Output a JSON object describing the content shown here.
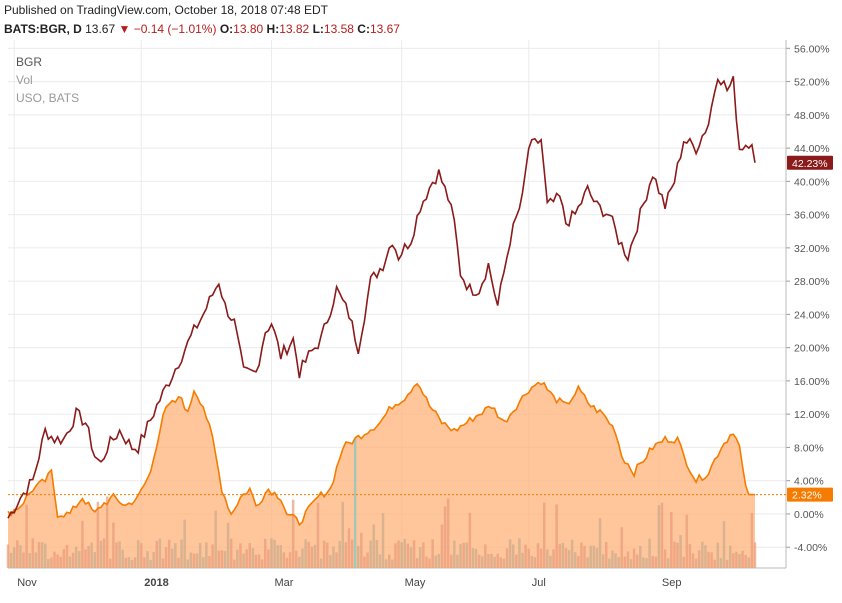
{
  "header": {
    "published": "Published on TradingView.com, October 18, 2018 07:48 EDT",
    "symbol": "BATS:BGR, D",
    "last": "13.67",
    "arrow": "▼",
    "change": "−0.14 (−1.01%)",
    "o_label": "O:",
    "o_val": "13.80",
    "h_label": "H:",
    "h_val": "13.82",
    "l_label": "L:",
    "l_val": "13.58",
    "c_label": "C:",
    "c_val": "13.67"
  },
  "legend": {
    "main": "BGR",
    "vol": "Vol",
    "compare": "USO, BATS"
  },
  "colors": {
    "bgr_line": "#8b1a1a",
    "uso_line": "#f57c00",
    "uso_fill": "#ffb27a",
    "bgr_badge": "#8b1a1a",
    "uso_badge": "#f57c00",
    "volume_teal": "#7ec8c8"
  },
  "chart_data": {
    "type": "line",
    "ylabel_unit": "%",
    "y_ticks": [
      "56.00%",
      "52.00%",
      "48.00%",
      "44.00%",
      "40.00%",
      "36.00%",
      "32.00%",
      "28.00%",
      "24.00%",
      "20.00%",
      "16.00%",
      "12.00%",
      "8.00%",
      "4.00%",
      "0.00%",
      "-4.00%"
    ],
    "ylim": [
      -6.5,
      57
    ],
    "x_ticks": [
      "Nov",
      "2018",
      "Mar",
      "May",
      "Jul",
      "Sep"
    ],
    "x_tick_index": [
      2,
      43,
      85,
      127,
      168,
      210
    ],
    "n_days": 242,
    "last_values": {
      "BGR": "42.23%",
      "USO": "2.32%"
    },
    "series": [
      {
        "name": "BGR",
        "keypoints": [
          [
            0,
            -0.5
          ],
          [
            4,
            2
          ],
          [
            8,
            4
          ],
          [
            12,
            10
          ],
          [
            15,
            9
          ],
          [
            18,
            9
          ],
          [
            22,
            12
          ],
          [
            25,
            11
          ],
          [
            28,
            7
          ],
          [
            30,
            6
          ],
          [
            32,
            8
          ],
          [
            36,
            10
          ],
          [
            40,
            8
          ],
          [
            42,
            8
          ],
          [
            48,
            13
          ],
          [
            52,
            16
          ],
          [
            56,
            19
          ],
          [
            60,
            22
          ],
          [
            63,
            24
          ],
          [
            68,
            28
          ],
          [
            70,
            25
          ],
          [
            73,
            23
          ],
          [
            76,
            17
          ],
          [
            80,
            17
          ],
          [
            83,
            22
          ],
          [
            85,
            23
          ],
          [
            88,
            19
          ],
          [
            92,
            21
          ],
          [
            94,
            17
          ],
          [
            97,
            19
          ],
          [
            101,
            21
          ],
          [
            106,
            27
          ],
          [
            110,
            24
          ],
          [
            113,
            20
          ],
          [
            117,
            28
          ],
          [
            121,
            30
          ],
          [
            124,
            33
          ],
          [
            126,
            31
          ],
          [
            130,
            33
          ],
          [
            133,
            37
          ],
          [
            137,
            40
          ],
          [
            139,
            41
          ],
          [
            142,
            38
          ],
          [
            144,
            35
          ],
          [
            146,
            29
          ],
          [
            149,
            27
          ],
          [
            152,
            27
          ],
          [
            155,
            30
          ],
          [
            158,
            25
          ],
          [
            162,
            33
          ],
          [
            166,
            38
          ],
          [
            168,
            44
          ],
          [
            172,
            45
          ],
          [
            174,
            37
          ],
          [
            178,
            38
          ],
          [
            180,
            35
          ],
          [
            183,
            36
          ],
          [
            187,
            39
          ],
          [
            190,
            37
          ],
          [
            194,
            36
          ],
          [
            197,
            33
          ],
          [
            200,
            31
          ],
          [
            204,
            36
          ],
          [
            208,
            41
          ],
          [
            212,
            37
          ],
          [
            215,
            40
          ],
          [
            218,
            45
          ],
          [
            222,
            44
          ],
          [
            226,
            47
          ],
          [
            229,
            53
          ],
          [
            232,
            51
          ],
          [
            234,
            52
          ],
          [
            236,
            44
          ],
          [
            240,
            45
          ],
          [
            242,
            42.2
          ]
        ]
      },
      {
        "name": "USO",
        "keypoints": [
          [
            0,
            0
          ],
          [
            4,
            1
          ],
          [
            8,
            3
          ],
          [
            12,
            4
          ],
          [
            14,
            5
          ],
          [
            16,
            0
          ],
          [
            20,
            0
          ],
          [
            24,
            2
          ],
          [
            28,
            0
          ],
          [
            30,
            1
          ],
          [
            34,
            2
          ],
          [
            38,
            1
          ],
          [
            42,
            2
          ],
          [
            46,
            5
          ],
          [
            50,
            12
          ],
          [
            52,
            13
          ],
          [
            56,
            14
          ],
          [
            58,
            12
          ],
          [
            60,
            15
          ],
          [
            63,
            13
          ],
          [
            66,
            9
          ],
          [
            69,
            3
          ],
          [
            72,
            0
          ],
          [
            75,
            2
          ],
          [
            78,
            3
          ],
          [
            80,
            1
          ],
          [
            84,
            3
          ],
          [
            88,
            2
          ],
          [
            90,
            0
          ],
          [
            94,
            -1
          ],
          [
            98,
            1
          ],
          [
            100,
            2
          ],
          [
            104,
            3
          ],
          [
            108,
            8
          ],
          [
            112,
            9
          ],
          [
            116,
            10
          ],
          [
            120,
            11
          ],
          [
            124,
            13
          ],
          [
            128,
            14
          ],
          [
            132,
            16
          ],
          [
            136,
            13
          ],
          [
            140,
            11
          ],
          [
            144,
            10
          ],
          [
            148,
            11
          ],
          [
            152,
            12
          ],
          [
            156,
            13
          ],
          [
            160,
            11
          ],
          [
            164,
            13
          ],
          [
            168,
            15
          ],
          [
            172,
            16
          ],
          [
            176,
            14
          ],
          [
            180,
            13
          ],
          [
            184,
            15
          ],
          [
            188,
            13
          ],
          [
            192,
            12
          ],
          [
            196,
            10
          ],
          [
            198,
            7
          ],
          [
            202,
            5
          ],
          [
            204,
            6
          ],
          [
            208,
            8
          ],
          [
            212,
            9
          ],
          [
            216,
            9
          ],
          [
            218,
            7
          ],
          [
            222,
            4
          ],
          [
            226,
            5
          ],
          [
            230,
            8
          ],
          [
            234,
            10
          ],
          [
            236,
            8
          ],
          [
            238,
            3
          ],
          [
            240,
            2
          ],
          [
            242,
            2.3
          ]
        ]
      }
    ]
  }
}
